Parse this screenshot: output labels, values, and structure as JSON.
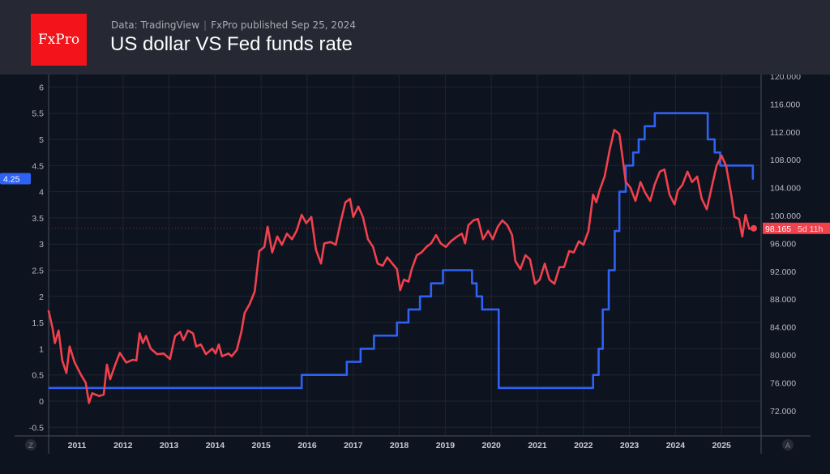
{
  "header": {
    "logo_text": "FxPro",
    "source": "Data: TradingView",
    "publisher": "FxPro published Sep 25, 2024",
    "title": "US dollar VS Fed funds rate"
  },
  "colors": {
    "fed_funds": "#2e62f5",
    "dollar_index": "#f0414d",
    "background": "#0e1320",
    "header": "#262833"
  },
  "axis_buttons": {
    "left": "Z",
    "right": "A"
  },
  "chart_data": {
    "type": "line",
    "title": "US dollar VS Fed funds rate",
    "grid": true,
    "x_ticks": [
      "2011",
      "2012",
      "2013",
      "2014",
      "2015",
      "2016",
      "2017",
      "2018",
      "2019",
      "2020",
      "2021",
      "2022",
      "2023",
      "2024",
      "2025"
    ],
    "left_axis": {
      "ylim": [
        -0.7,
        6.2
      ],
      "ticks": [
        "6",
        "5.5",
        "5",
        "4.5",
        "4",
        "3.5",
        "3",
        "2.5",
        "2",
        "1.5",
        "1",
        "0.5",
        "0",
        "-0.5"
      ],
      "last_label": "4.25"
    },
    "right_axis": {
      "ylim": [
        70,
        120
      ],
      "ticks": [
        "120.000",
        "116.000",
        "112.000",
        "108.000",
        "104.000",
        "100.000",
        "96.000",
        "92.000",
        "88.000",
        "84.000",
        "80.000",
        "76.000",
        "72.000"
      ],
      "last_label": "98.165",
      "countdown": "5d 11h"
    },
    "series": [
      {
        "axis": "left",
        "style": "step",
        "points": [
          [
            2010.38,
            0.25
          ],
          [
            2015.88,
            0.5
          ],
          [
            2016.86,
            0.75
          ],
          [
            2017.16,
            1.0
          ],
          [
            2017.45,
            1.25
          ],
          [
            2017.95,
            1.5
          ],
          [
            2018.2,
            1.75
          ],
          [
            2018.45,
            2.0
          ],
          [
            2018.69,
            2.25
          ],
          [
            2018.95,
            2.5
          ],
          [
            2019.58,
            2.25
          ],
          [
            2019.68,
            2.0
          ],
          [
            2019.8,
            1.75
          ],
          [
            2020.16,
            0.25
          ],
          [
            2022.21,
            0.5
          ],
          [
            2022.33,
            1.0
          ],
          [
            2022.42,
            1.75
          ],
          [
            2022.55,
            2.5
          ],
          [
            2022.68,
            3.25
          ],
          [
            2022.78,
            4.0
          ],
          [
            2022.92,
            4.5
          ],
          [
            2023.08,
            4.75
          ],
          [
            2023.2,
            5.0
          ],
          [
            2023.33,
            5.25
          ],
          [
            2023.55,
            5.5
          ],
          [
            2024.7,
            5.0
          ],
          [
            2024.85,
            4.75
          ],
          [
            2024.97,
            4.5
          ],
          [
            2025.68,
            4.25
          ],
          [
            2025.7,
            4.25
          ]
        ]
      },
      {
        "axis": "right",
        "style": "line",
        "points": [
          [
            2010.38,
            86.4
          ],
          [
            2010.47,
            83.8
          ],
          [
            2010.52,
            81.7
          ],
          [
            2010.6,
            83.5
          ],
          [
            2010.68,
            79.2
          ],
          [
            2010.77,
            77.4
          ],
          [
            2010.84,
            81.2
          ],
          [
            2010.95,
            78.9
          ],
          [
            2011.09,
            77.1
          ],
          [
            2011.19,
            76.0
          ],
          [
            2011.26,
            73.1
          ],
          [
            2011.33,
            74.5
          ],
          [
            2011.48,
            74.1
          ],
          [
            2011.58,
            74.3
          ],
          [
            2011.65,
            78.6
          ],
          [
            2011.72,
            76.5
          ],
          [
            2011.83,
            78.6
          ],
          [
            2011.93,
            80.3
          ],
          [
            2012.07,
            78.9
          ],
          [
            2012.21,
            79.3
          ],
          [
            2012.29,
            79.2
          ],
          [
            2012.36,
            83.1
          ],
          [
            2012.43,
            81.7
          ],
          [
            2012.5,
            82.7
          ],
          [
            2012.6,
            80.9
          ],
          [
            2012.74,
            80.1
          ],
          [
            2012.88,
            80.2
          ],
          [
            2013.02,
            79.4
          ],
          [
            2013.13,
            82.7
          ],
          [
            2013.24,
            83.3
          ],
          [
            2013.31,
            82.1
          ],
          [
            2013.41,
            83.5
          ],
          [
            2013.52,
            83.1
          ],
          [
            2013.59,
            81.2
          ],
          [
            2013.69,
            81.5
          ],
          [
            2013.8,
            80.1
          ],
          [
            2013.94,
            80.9
          ],
          [
            2014.01,
            80.2
          ],
          [
            2014.08,
            81.5
          ],
          [
            2014.15,
            79.8
          ],
          [
            2014.29,
            80.2
          ],
          [
            2014.36,
            79.8
          ],
          [
            2014.47,
            80.7
          ],
          [
            2014.57,
            83.3
          ],
          [
            2014.64,
            86.0
          ],
          [
            2014.75,
            87.3
          ],
          [
            2014.86,
            89.1
          ],
          [
            2014.96,
            94.9
          ],
          [
            2015.07,
            95.5
          ],
          [
            2015.14,
            98.4
          ],
          [
            2015.24,
            94.7
          ],
          [
            2015.35,
            97.0
          ],
          [
            2015.45,
            95.8
          ],
          [
            2015.56,
            97.4
          ],
          [
            2015.67,
            96.6
          ],
          [
            2015.77,
            97.8
          ],
          [
            2015.88,
            100.1
          ],
          [
            2015.98,
            98.9
          ],
          [
            2016.09,
            99.8
          ],
          [
            2016.19,
            95.1
          ],
          [
            2016.3,
            93.1
          ],
          [
            2016.37,
            96.0
          ],
          [
            2016.51,
            96.2
          ],
          [
            2016.62,
            95.8
          ],
          [
            2016.72,
            98.9
          ],
          [
            2016.83,
            101.9
          ],
          [
            2016.93,
            102.4
          ],
          [
            2017.0,
            99.8
          ],
          [
            2017.11,
            101.3
          ],
          [
            2017.21,
            99.8
          ],
          [
            2017.32,
            96.6
          ],
          [
            2017.43,
            95.5
          ],
          [
            2017.53,
            93.1
          ],
          [
            2017.64,
            92.8
          ],
          [
            2017.74,
            94.0
          ],
          [
            2017.85,
            93.1
          ],
          [
            2017.95,
            92.3
          ],
          [
            2018.02,
            89.3
          ],
          [
            2018.1,
            90.8
          ],
          [
            2018.2,
            90.5
          ],
          [
            2018.27,
            92.3
          ],
          [
            2018.38,
            94.3
          ],
          [
            2018.48,
            94.7
          ],
          [
            2018.59,
            95.5
          ],
          [
            2018.69,
            96.0
          ],
          [
            2018.8,
            97.2
          ],
          [
            2018.9,
            96.0
          ],
          [
            2019.01,
            95.5
          ],
          [
            2019.12,
            96.3
          ],
          [
            2019.26,
            97.0
          ],
          [
            2019.36,
            97.4
          ],
          [
            2019.43,
            96.0
          ],
          [
            2019.5,
            98.6
          ],
          [
            2019.61,
            99.3
          ],
          [
            2019.71,
            99.5
          ],
          [
            2019.82,
            96.6
          ],
          [
            2019.93,
            97.8
          ],
          [
            2020.03,
            96.6
          ],
          [
            2020.14,
            98.4
          ],
          [
            2020.24,
            99.3
          ],
          [
            2020.35,
            98.6
          ],
          [
            2020.45,
            97.2
          ],
          [
            2020.52,
            93.5
          ],
          [
            2020.63,
            92.3
          ],
          [
            2020.74,
            94.3
          ],
          [
            2020.84,
            93.7
          ],
          [
            2020.95,
            90.2
          ],
          [
            2021.05,
            90.8
          ],
          [
            2021.16,
            93.1
          ],
          [
            2021.26,
            90.8
          ],
          [
            2021.37,
            90.2
          ],
          [
            2021.48,
            92.6
          ],
          [
            2021.58,
            92.6
          ],
          [
            2021.69,
            94.9
          ],
          [
            2021.79,
            94.7
          ],
          [
            2021.9,
            96.3
          ],
          [
            2022.0,
            95.8
          ],
          [
            2022.11,
            97.8
          ],
          [
            2022.21,
            103.0
          ],
          [
            2022.28,
            101.9
          ],
          [
            2022.35,
            103.6
          ],
          [
            2022.46,
            105.6
          ],
          [
            2022.57,
            109.4
          ],
          [
            2022.67,
            112.3
          ],
          [
            2022.78,
            111.7
          ],
          [
            2022.85,
            108.3
          ],
          [
            2022.92,
            104.8
          ],
          [
            2023.02,
            104.0
          ],
          [
            2023.13,
            102.1
          ],
          [
            2023.24,
            104.8
          ],
          [
            2023.34,
            103.3
          ],
          [
            2023.45,
            102.1
          ],
          [
            2023.55,
            104.5
          ],
          [
            2023.66,
            106.3
          ],
          [
            2023.76,
            106.6
          ],
          [
            2023.87,
            103.0
          ],
          [
            2023.98,
            101.6
          ],
          [
            2024.05,
            103.6
          ],
          [
            2024.15,
            104.4
          ],
          [
            2024.26,
            106.3
          ],
          [
            2024.36,
            104.8
          ],
          [
            2024.47,
            105.6
          ],
          [
            2024.57,
            102.4
          ],
          [
            2024.68,
            100.9
          ],
          [
            2024.79,
            104.2
          ],
          [
            2024.89,
            107.1
          ],
          [
            2025.0,
            108.6
          ],
          [
            2025.1,
            107.1
          ],
          [
            2025.21,
            103.0
          ],
          [
            2025.28,
            99.8
          ],
          [
            2025.38,
            99.5
          ],
          [
            2025.45,
            97.0
          ],
          [
            2025.52,
            100.1
          ],
          [
            2025.6,
            98.1
          ],
          [
            2025.7,
            98.165
          ]
        ]
      }
    ]
  }
}
